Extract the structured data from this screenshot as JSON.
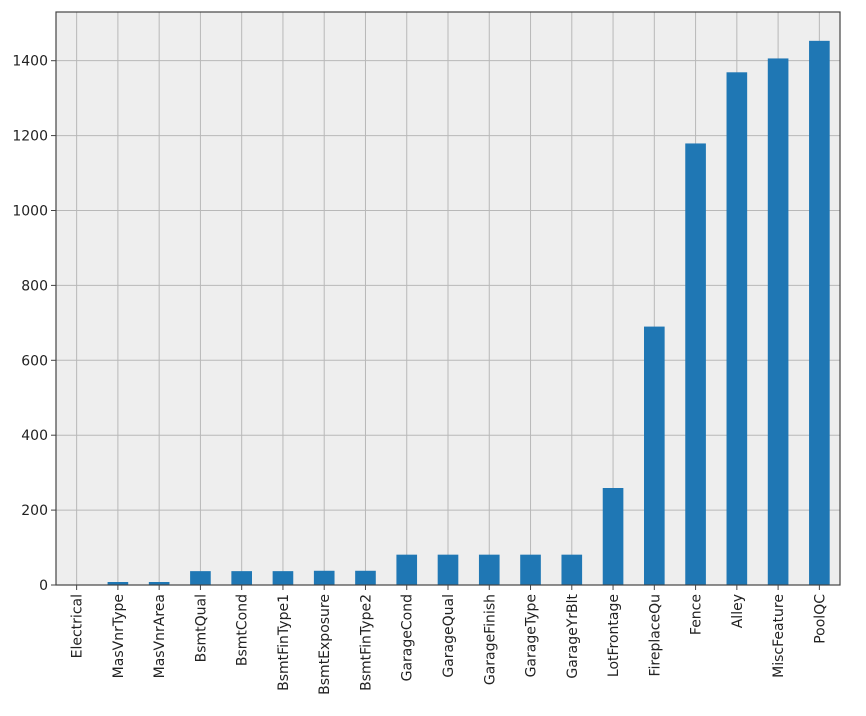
{
  "chart_data": {
    "type": "bar",
    "categories": [
      "Electrical",
      "MasVnrType",
      "MasVnrArea",
      "BsmtQual",
      "BsmtCond",
      "BsmtFinType1",
      "BsmtExposure",
      "BsmtFinType2",
      "GarageCond",
      "GarageQual",
      "GarageFinish",
      "GarageType",
      "GarageYrBlt",
      "LotFrontage",
      "FireplaceQu",
      "Fence",
      "Alley",
      "MiscFeature",
      "PoolQC"
    ],
    "values": [
      1,
      8,
      8,
      37,
      37,
      37,
      38,
      38,
      81,
      81,
      81,
      81,
      81,
      259,
      690,
      1179,
      1369,
      1406,
      1453
    ],
    "title": "",
    "xlabel": "",
    "ylabel": "",
    "ylim": [
      0,
      1530
    ],
    "yticks": [
      0,
      200,
      400,
      600,
      800,
      1000,
      1200,
      1400
    ],
    "grid": true,
    "colors": {
      "bar": "#1f77b4",
      "plot_background": "#eeeeee",
      "grid": "#b8b8b8"
    }
  }
}
